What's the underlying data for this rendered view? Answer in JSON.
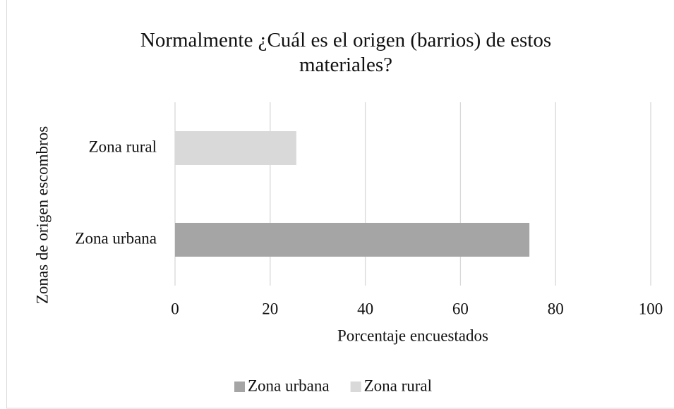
{
  "chart_data": {
    "type": "bar",
    "orientation": "horizontal",
    "title": "Normalmente ¿Cuál es el origen (barrios)  de estos materiales?",
    "x_label": "Porcentaje encuestados",
    "y_label": "Zonas de origen escombros",
    "categories": [
      "Zona urbana",
      "Zona rural"
    ],
    "values": [
      74.5,
      25.5
    ],
    "colors": [
      "#a5a5a5",
      "#d9d9d9"
    ],
    "xlim": [
      0,
      100
    ],
    "xticks": [
      0,
      20,
      40,
      60,
      80,
      100
    ],
    "grid": true,
    "legend": "bottom"
  }
}
